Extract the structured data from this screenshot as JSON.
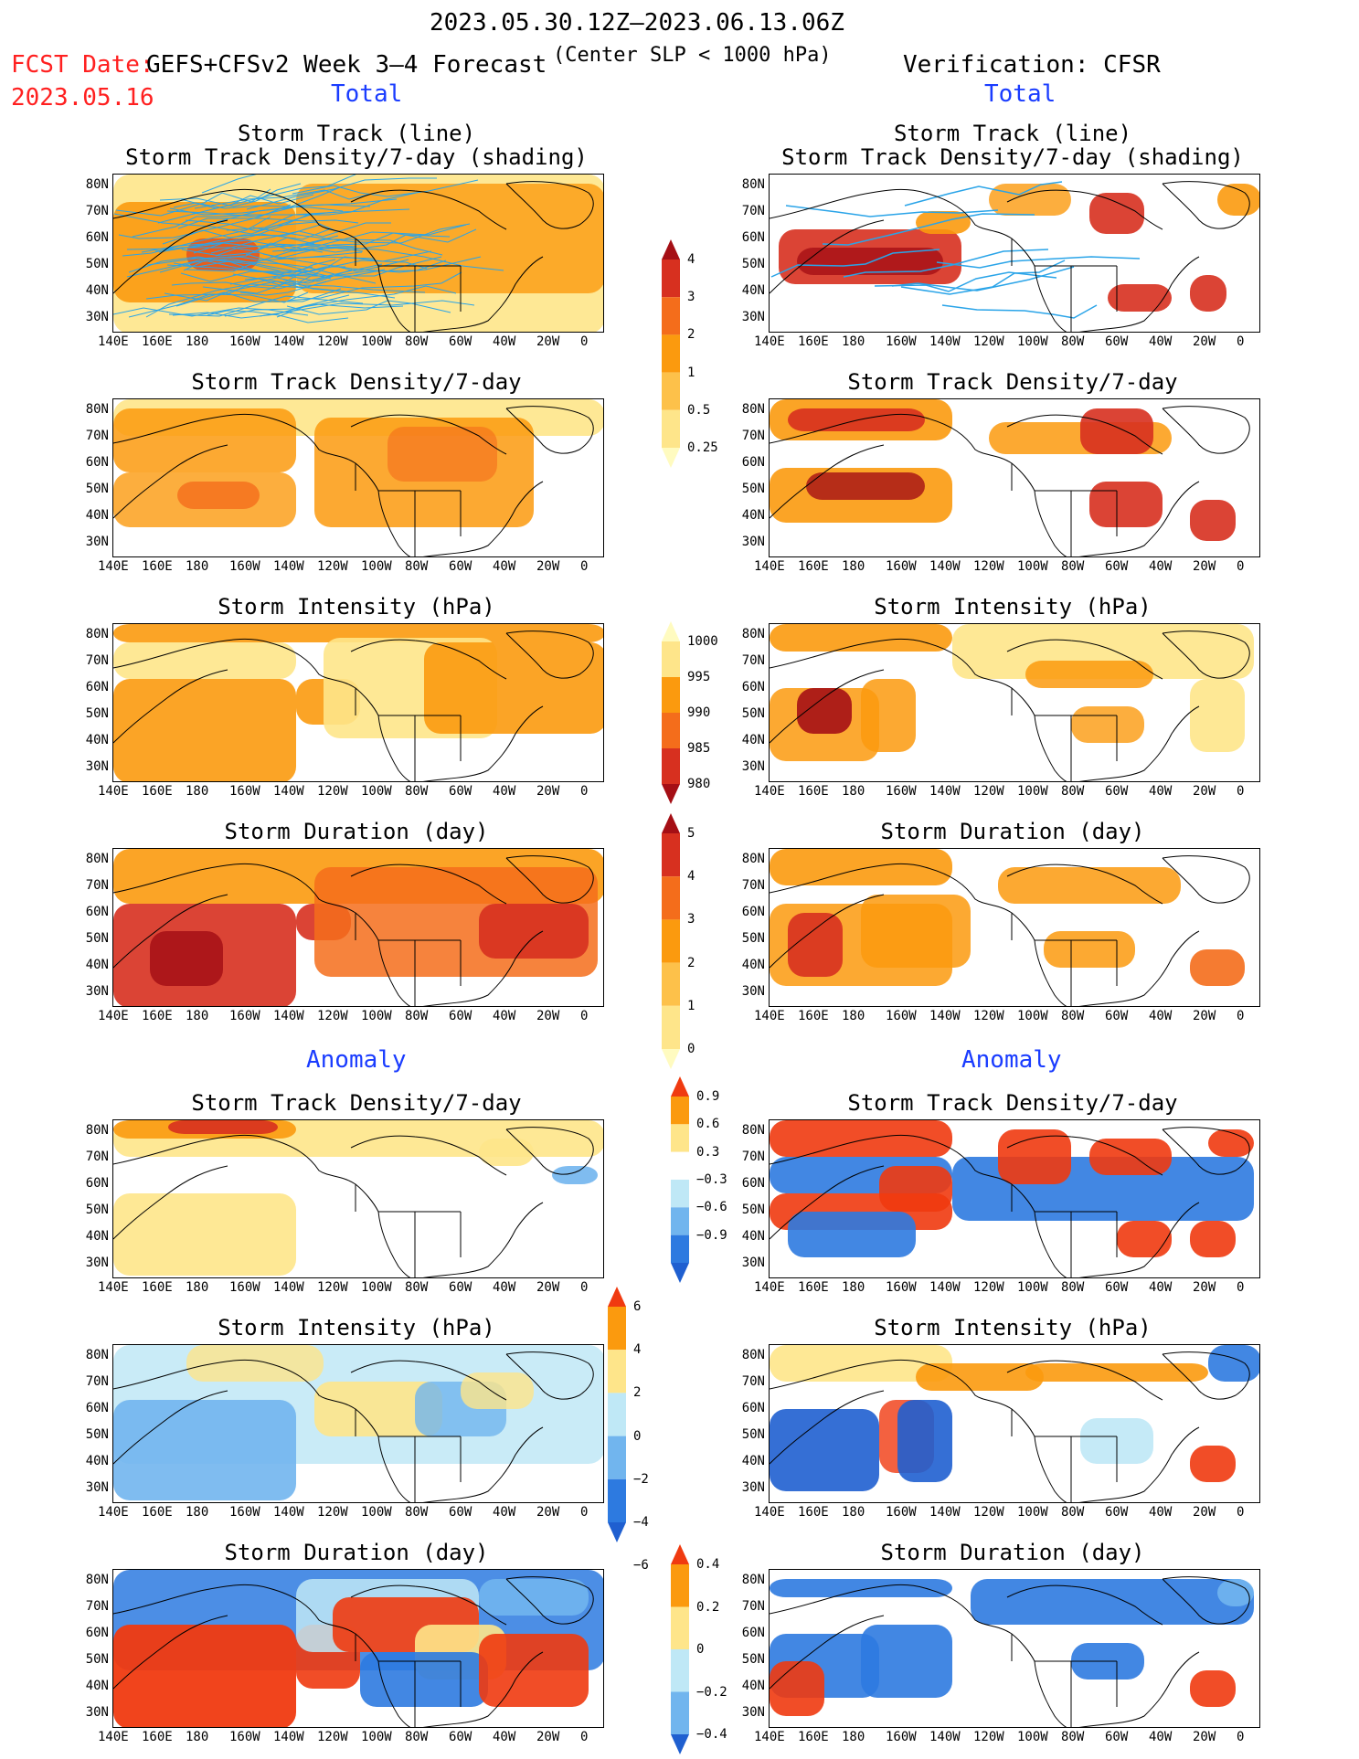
{
  "header": {
    "date_range": "2023.05.30.12Z–2023.06.13.06Z",
    "fcst_label": "FCST Date:",
    "fcst_date": "2023.05.16",
    "model": "GEFS+CFSv2 Week 3–4 Forecast",
    "criterion": "(Center SLP < 1000 hPa)",
    "verification": "Verification: CFSR"
  },
  "sections": {
    "total": "Total",
    "anomaly": "Anomaly"
  },
  "titles": {
    "track_line": "Storm Track (line)",
    "track_density_shading": "Storm Track Density/7-day (shading)",
    "track_density": "Storm Track Density/7-day",
    "intensity": "Storm Intensity (hPa)",
    "duration": "Storm Duration (day)"
  },
  "lat_labels": [
    "80N",
    "70N",
    "60N",
    "50N",
    "40N",
    "30N"
  ],
  "lon_labels": [
    "140E",
    "160E",
    "180",
    "160W",
    "140W",
    "120W",
    "100W",
    "80W",
    "60W",
    "40W",
    "20W",
    "0"
  ],
  "colorbars": {
    "density": {
      "labels": [
        "4",
        "3",
        "2",
        "1",
        "0.5",
        "0.25"
      ],
      "colors": [
        "#a50f15",
        "#d7301f",
        "#f46d1b",
        "#fb9a0e",
        "#fdc14a",
        "#fee58a",
        "#fffbc0"
      ]
    },
    "intensity": {
      "labels": [
        "1000",
        "995",
        "990",
        "985",
        "980"
      ],
      "colors": [
        "#fffbc0",
        "#fee58a",
        "#fb9a0e",
        "#f46d1b",
        "#d7301f",
        "#a50f15"
      ]
    },
    "duration": {
      "labels": [
        "5",
        "4",
        "3",
        "2",
        "1",
        "0"
      ],
      "colors": [
        "#a50f15",
        "#d7301f",
        "#f46d1b",
        "#fb9a0e",
        "#fdc14a",
        "#fee58a",
        "#fffbc0"
      ]
    },
    "anom_density": {
      "labels": [
        "0.9",
        "0.6",
        "0.3",
        "−0.3",
        "−0.6",
        "−0.9"
      ],
      "colors": [
        "#f03a10",
        "#fb9a0e",
        "#fee58a",
        "#ffffff",
        "#bfe8f6",
        "#71b5ee",
        "#2d7ae0",
        "#1f5fd0"
      ]
    },
    "anom_intensity": {
      "labels": [
        "6",
        "4",
        "2",
        "0",
        "−2",
        "−4",
        "−6"
      ],
      "colors": [
        "#f03a10",
        "#fb9a0e",
        "#fee58a",
        "#bfe8f6",
        "#71b5ee",
        "#2d7ae0",
        "#1f5fd0"
      ]
    },
    "anom_duration": {
      "labels": [
        "0.4",
        "0.2",
        "0",
        "−0.2",
        "−0.4"
      ],
      "colors": [
        "#f03a10",
        "#fb9a0e",
        "#fee58a",
        "#bfe8f6",
        "#71b5ee",
        "#1f5fd0"
      ]
    }
  }
}
